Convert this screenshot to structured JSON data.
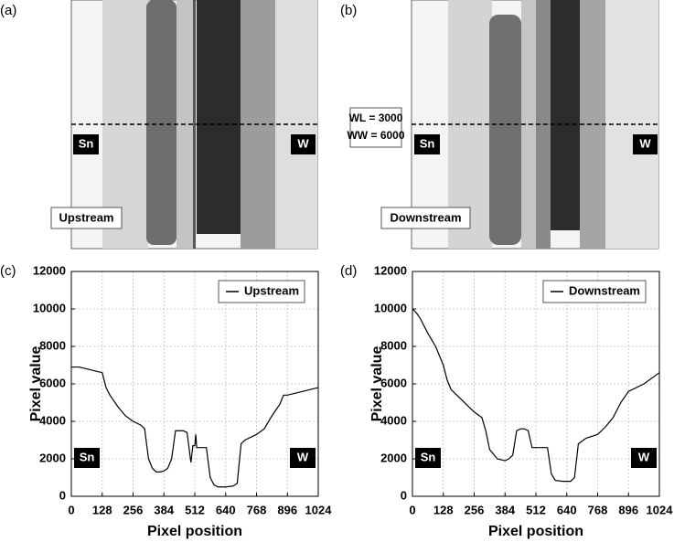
{
  "panels": [
    {
      "label": "(a)",
      "left": "Sn",
      "right": "W",
      "name": "Upstream"
    },
    {
      "label": "(b)",
      "left": "Sn",
      "right": "W",
      "name": "Downstream"
    }
  ],
  "window": [
    "WL = 3000",
    "WW = 6000"
  ],
  "chart_data": [
    {
      "type": "line",
      "panel_label": "(c)",
      "xlabel": "Pixel position",
      "ylabel": "Pixel value",
      "xlim": [
        0,
        1024
      ],
      "ylim": [
        0,
        12000
      ],
      "xticks": [
        0,
        128,
        256,
        384,
        512,
        640,
        768,
        896,
        1024
      ],
      "yticks": [
        0,
        2000,
        4000,
        6000,
        8000,
        10000,
        12000
      ],
      "grid": true,
      "legend": "upper right",
      "annotations": [
        "Sn",
        "W"
      ],
      "series": [
        {
          "name": "Upstream",
          "color": "#000000",
          "x": [
            0,
            32,
            64,
            96,
            128,
            144,
            160,
            192,
            224,
            256,
            288,
            304,
            320,
            336,
            352,
            368,
            384,
            400,
            416,
            432,
            448,
            464,
            480,
            496,
            504,
            512,
            516,
            520,
            544,
            560,
            576,
            592,
            608,
            640,
            672,
            688,
            704,
            720,
            768,
            800,
            832,
            864,
            880,
            896,
            960,
            1024
          ],
          "values": [
            6900,
            6900,
            6800,
            6700,
            6600,
            5800,
            5400,
            4800,
            4300,
            4000,
            3800,
            3600,
            2000,
            1500,
            1300,
            1300,
            1350,
            1500,
            2000,
            3500,
            3500,
            3500,
            3400,
            1800,
            2700,
            2700,
            3300,
            2600,
            2600,
            2600,
            1000,
            600,
            500,
            500,
            550,
            700,
            2800,
            3000,
            3300,
            3600,
            4300,
            4900,
            5400,
            5400,
            5600,
            5800
          ]
        }
      ]
    },
    {
      "type": "line",
      "panel_label": "(d)",
      "xlabel": "Pixel position",
      "ylabel": "Pixel value",
      "xlim": [
        0,
        1024
      ],
      "ylim": [
        0,
        12000
      ],
      "xticks": [
        0,
        128,
        256,
        384,
        512,
        640,
        768,
        896,
        1024
      ],
      "yticks": [
        0,
        2000,
        4000,
        6000,
        8000,
        10000,
        12000
      ],
      "grid": true,
      "legend": "upper right",
      "annotations": [
        "Sn",
        "W"
      ],
      "series": [
        {
          "name": "Downstream",
          "color": "#000000",
          "x": [
            0,
            16,
            32,
            64,
            96,
            128,
            144,
            160,
            192,
            224,
            256,
            288,
            304,
            320,
            352,
            384,
            400,
            416,
            432,
            448,
            464,
            480,
            496,
            528,
            560,
            576,
            592,
            624,
            656,
            672,
            688,
            720,
            768,
            800,
            832,
            864,
            896,
            960,
            1024
          ],
          "values": [
            10000,
            9800,
            9500,
            8700,
            8000,
            7000,
            6200,
            5700,
            5300,
            4900,
            4500,
            4200,
            3500,
            2500,
            2000,
            1900,
            2000,
            2200,
            3500,
            3600,
            3600,
            3500,
            2600,
            2600,
            2600,
            1200,
            850,
            800,
            800,
            1000,
            2800,
            3100,
            3300,
            3700,
            4200,
            5000,
            5600,
            6000,
            6600
          ]
        }
      ]
    }
  ]
}
